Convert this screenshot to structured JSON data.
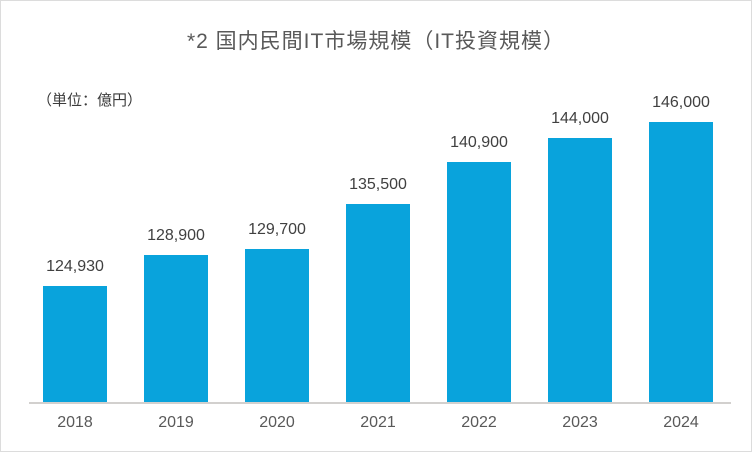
{
  "chart_data": {
    "type": "bar",
    "title": "*2 国内民間IT市場規模（IT投資規模）",
    "unit_label": "（単位：億円）",
    "categories": [
      "2018",
      "2019",
      "2020",
      "2021",
      "2022",
      "2023",
      "2024"
    ],
    "values": [
      124930,
      128900,
      129700,
      135500,
      140900,
      144000,
      146000
    ],
    "value_labels": [
      "124,930",
      "128,900",
      "129,700",
      "135,500",
      "140,900",
      "144,000",
      "146,000"
    ],
    "xlabel": "",
    "ylabel": "億円",
    "ylim": [
      110000,
      150000
    ],
    "grid": false,
    "legend": "none",
    "colors": {
      "bar": "#09a3dc",
      "title_text": "#595959",
      "data_label_text": "#404040",
      "tick_text": "#595959",
      "axis_line": "#d2d0ce",
      "frame_border": "#dcdcdc",
      "background": "#ffffff"
    }
  }
}
